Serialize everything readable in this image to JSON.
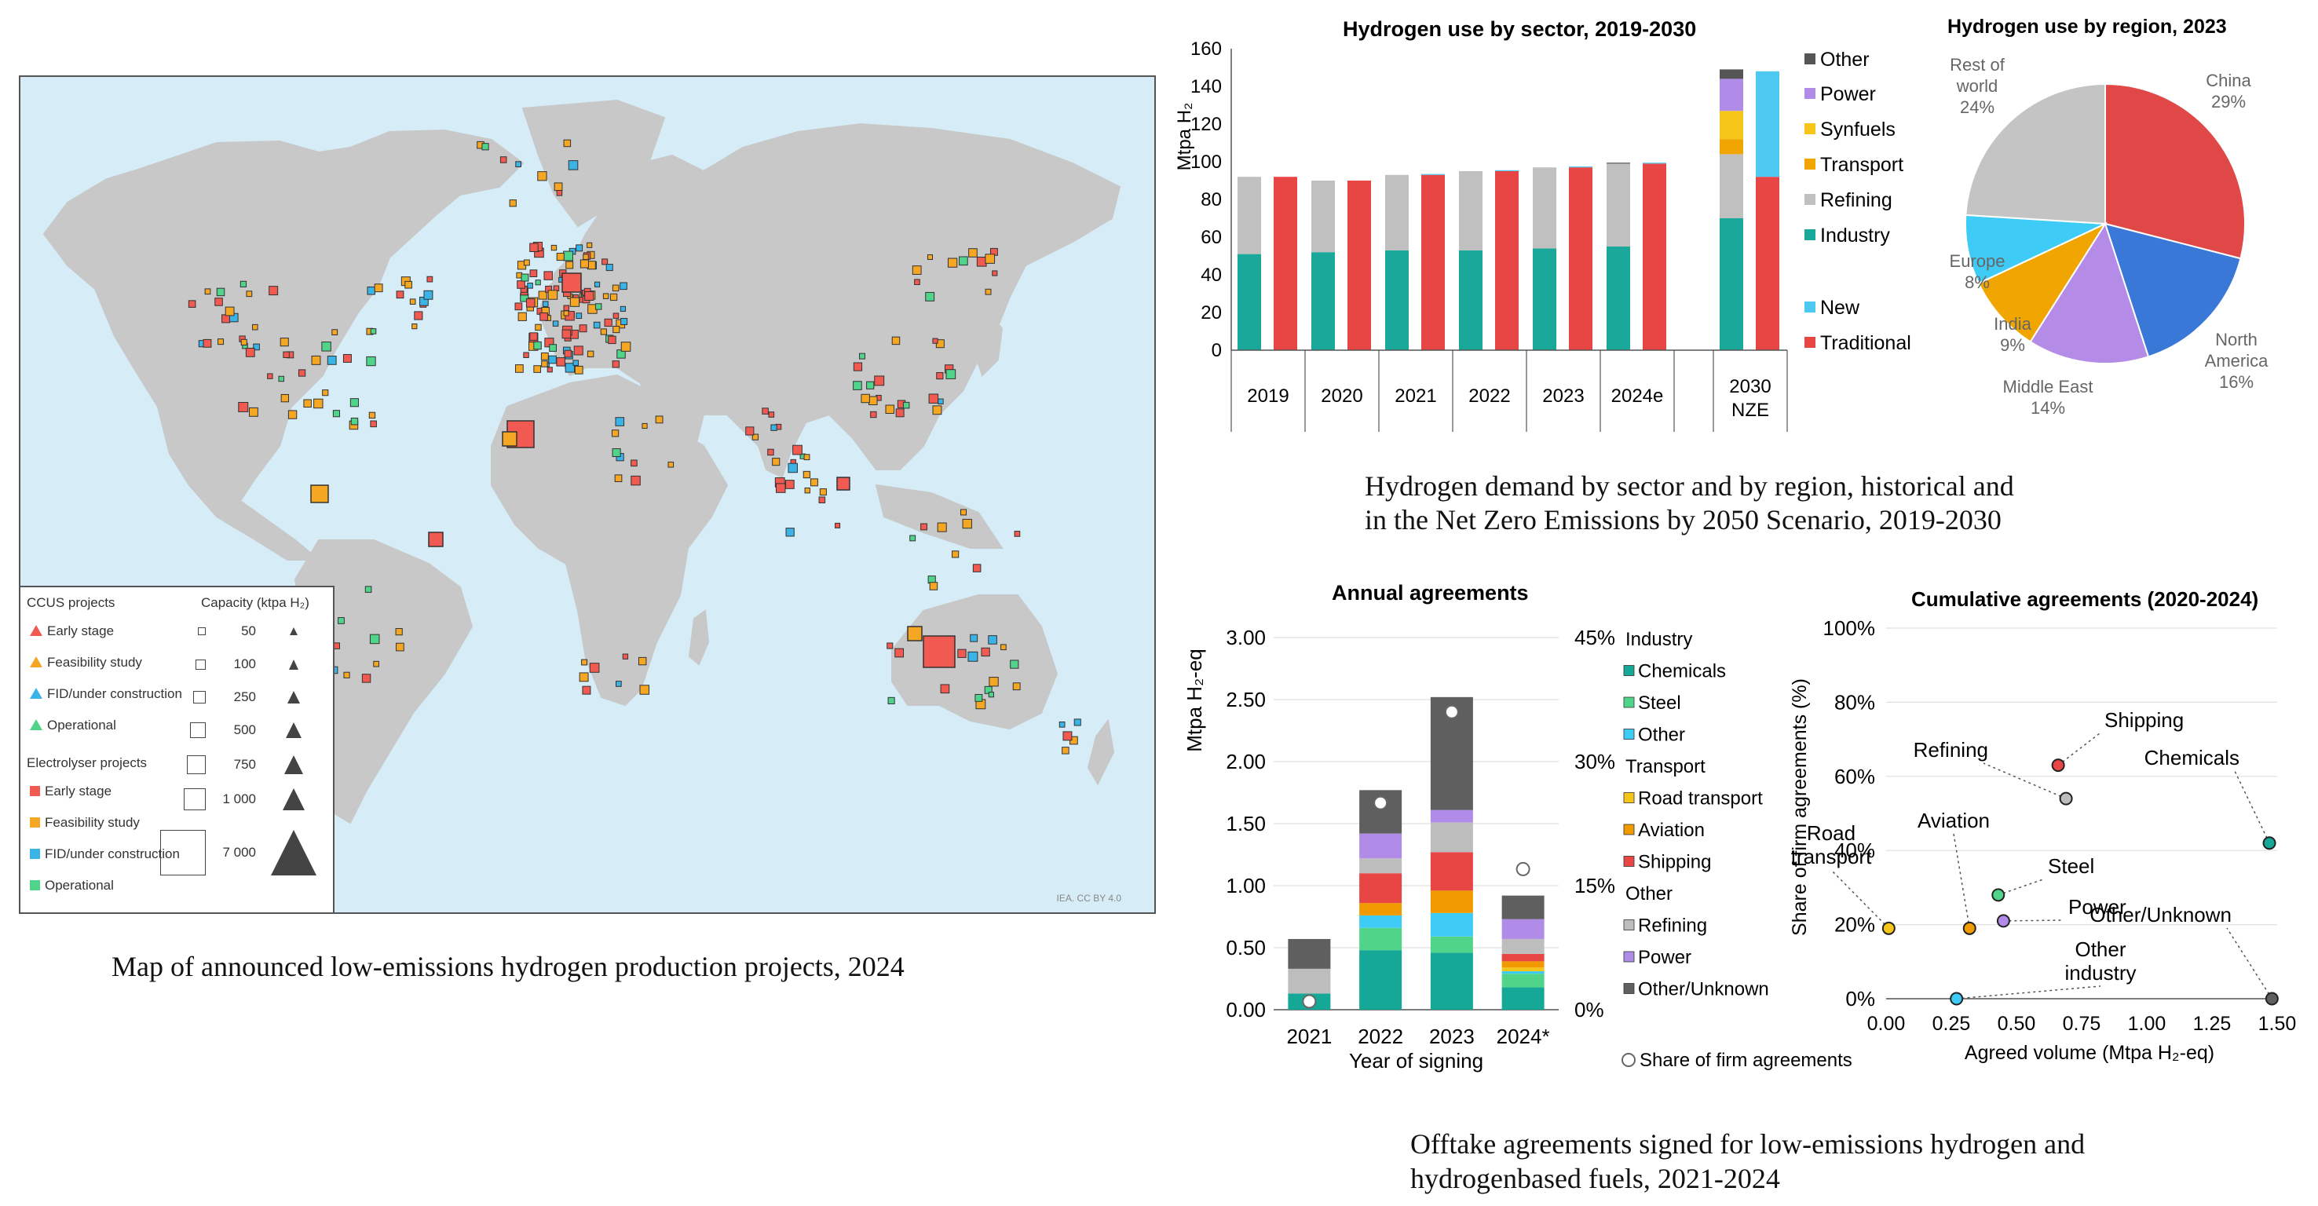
{
  "map": {
    "caption": "Map of announced low-emissions hydrogen production projects, 2024",
    "credit": "IEA. CC BY 4.0",
    "legend": {
      "ccus_header": "CCUS projects",
      "ccus_items": [
        "Early stage",
        "Feasibility study",
        "FID/under construction",
        "Operational"
      ],
      "electrolyser_header": "Electrolyser projects",
      "electrolyser_items": [
        "Early stage",
        "Feasibility study",
        "FID/under construction",
        "Operational"
      ],
      "capacity_header": "Capacity (ktpa H₂)",
      "capacity_values": [
        "50",
        "100",
        "250",
        "500",
        "750",
        "1 000",
        "7 000"
      ]
    },
    "colors": {
      "early_stage": "#f05a50",
      "feasibility": "#f5a623",
      "fid": "#3ab4e6",
      "operational": "#4fd48a",
      "land": "#c8c8c8",
      "ocean": "#d6ecf6"
    }
  },
  "demand": {
    "caption_line1": "Hydrogen demand by sector and by region, historical and",
    "caption_line2": "in the Net Zero Emissions by 2050 Scenario, 2019-2030"
  },
  "offtake": {
    "caption_line1": "Offtake agreements signed for low-emissions hydrogen and",
    "caption_line2": "hydrogenbased fuels, 2021-2024"
  },
  "chart_data": [
    {
      "type": "bar",
      "title": "Hydrogen use by sector, 2019-2030",
      "ylabel": "Mtpa H₂",
      "ylim": [
        0,
        160
      ],
      "yticks": [
        "0",
        "20",
        "40",
        "60",
        "80",
        "100",
        "120",
        "140",
        "160"
      ],
      "categories": [
        "2019",
        "2020",
        "2021",
        "2022",
        "2023",
        "2024e",
        "2030 NZE"
      ],
      "category_labels": [
        [
          "2019"
        ],
        [
          "2020"
        ],
        [
          "2021"
        ],
        [
          "2022"
        ],
        [
          "2023"
        ],
        [
          "2024e"
        ],
        [
          "2030",
          "NZE"
        ]
      ],
      "legend": [
        "Other",
        "Power",
        "Synfuels",
        "Transport",
        "Refining",
        "Industry",
        "New",
        "Traditional"
      ],
      "colors": {
        "Other": "#555555",
        "Power": "#b18be8",
        "Synfuels": "#f5c518",
        "Transport": "#f0a500",
        "Refining": "#c0c0c0",
        "Industry": "#1aa89a",
        "New": "#4dc8f0",
        "Traditional": "#e84545"
      },
      "sector_bars": [
        {
          "Industry": 51,
          "Refining": 41,
          "Transport": 0,
          "Synfuels": 0,
          "Power": 0,
          "Other": 0
        },
        {
          "Industry": 52,
          "Refining": 38,
          "Transport": 0,
          "Synfuels": 0,
          "Power": 0,
          "Other": 0
        },
        {
          "Industry": 53,
          "Refining": 40,
          "Transport": 0,
          "Synfuels": 0,
          "Power": 0,
          "Other": 0
        },
        {
          "Industry": 53,
          "Refining": 42,
          "Transport": 0,
          "Synfuels": 0,
          "Power": 0,
          "Other": 0
        },
        {
          "Industry": 54,
          "Refining": 43,
          "Transport": 0,
          "Synfuels": 0,
          "Power": 0,
          "Other": 0
        },
        {
          "Industry": 55,
          "Refining": 44,
          "Transport": 0,
          "Synfuels": 0,
          "Power": 0,
          "Other": 0.5
        },
        {
          "Industry": 70,
          "Refining": 34,
          "Transport": 8,
          "Synfuels": 15,
          "Power": 17,
          "Other": 5
        }
      ],
      "type_bars": [
        {
          "Traditional": 92,
          "New": 0
        },
        {
          "Traditional": 90,
          "New": 0
        },
        {
          "Traditional": 93,
          "New": 0.5
        },
        {
          "Traditional": 95,
          "New": 0.5
        },
        {
          "Traditional": 97,
          "New": 0.5
        },
        {
          "Traditional": 99,
          "New": 0.5
        },
        {
          "Traditional": 92,
          "New": 56
        }
      ]
    },
    {
      "type": "pie",
      "title": "Hydrogen use by region, 2023",
      "slices": [
        {
          "label": "China",
          "value": 29,
          "color": "#e04848"
        },
        {
          "label": "North America",
          "value": 16,
          "color": "#3a78d8"
        },
        {
          "label": "Middle East",
          "value": 14,
          "color": "#b58be8"
        },
        {
          "label": "India",
          "value": 9,
          "color": "#f0a500"
        },
        {
          "label": "Europe",
          "value": 8,
          "color": "#3ecbf5"
        },
        {
          "label": "Rest of world",
          "value": 24,
          "color": "#c4c4c4"
        }
      ],
      "label_lines": [
        [
          "China",
          "29%"
        ],
        [
          "North",
          "America",
          "16%"
        ],
        [
          "Middle East",
          "14%"
        ],
        [
          "India",
          "9%"
        ],
        [
          "Europe",
          "8%"
        ],
        [
          "Rest of",
          "world",
          "24%"
        ]
      ]
    },
    {
      "type": "bar",
      "title": "Annual agreements",
      "ylabel": "Mtpa H₂-eq",
      "xlabel": "Year of signing",
      "ylim": [
        0,
        3.0
      ],
      "yticks": [
        "0.00",
        "0.50",
        "1.00",
        "1.50",
        "2.00",
        "2.50",
        "3.00"
      ],
      "y2ticks": [
        "0%",
        "15%",
        "30%",
        "45%"
      ],
      "y2lim": [
        0,
        45
      ],
      "categories": [
        "2021",
        "2022",
        "2023",
        "2024*"
      ],
      "stack_order": [
        "Chemicals",
        "Steel",
        "Other",
        "Road transport",
        "Aviation",
        "Shipping",
        "Refining",
        "Power",
        "Other/Unknown"
      ],
      "colors": {
        "Chemicals": "#16a896",
        "Steel": "#4fd48a",
        "Other": "#3ecbf5",
        "Road transport": "#f5c518",
        "Aviation": "#f09a00",
        "Shipping": "#e84545",
        "Refining": "#bdbdbd",
        "Power": "#b18be8",
        "Other/Unknown": "#5f5f5f"
      },
      "values": [
        {
          "Chemicals": 0.13,
          "Steel": 0,
          "Other": 0,
          "Road transport": 0,
          "Aviation": 0,
          "Shipping": 0,
          "Refining": 0.2,
          "Power": 0,
          "Other/Unknown": 0.24
        },
        {
          "Chemicals": 0.48,
          "Steel": 0.18,
          "Other": 0.1,
          "Road transport": 0,
          "Aviation": 0.1,
          "Shipping": 0.24,
          "Refining": 0.12,
          "Power": 0.2,
          "Other/Unknown": 0.35
        },
        {
          "Chemicals": 0.46,
          "Steel": 0.13,
          "Other": 0.19,
          "Road transport": 0,
          "Aviation": 0.18,
          "Shipping": 0.31,
          "Refining": 0.24,
          "Power": 0.1,
          "Other/Unknown": 0.91
        },
        {
          "Chemicals": 0.18,
          "Steel": 0.11,
          "Other": 0.02,
          "Road transport": 0.03,
          "Aviation": 0.05,
          "Shipping": 0.06,
          "Refining": 0.12,
          "Power": 0.16,
          "Other/Unknown": 0.19
        }
      ],
      "share_of_firm_agreements": [
        1,
        25,
        36,
        17
      ],
      "legend": [
        {
          "text": "Industry",
          "key": null
        },
        {
          "text": "Chemicals",
          "key": "Chemicals"
        },
        {
          "text": "Steel",
          "key": "Steel"
        },
        {
          "text": "Other",
          "key": "Other"
        },
        {
          "text": "Transport",
          "key": null
        },
        {
          "text": "Road transport",
          "key": "Road transport"
        },
        {
          "text": "Aviation",
          "key": "Aviation"
        },
        {
          "text": "Shipping",
          "key": "Shipping"
        },
        {
          "text": "Other",
          "key": null
        },
        {
          "text": "Refining",
          "key": "Refining"
        },
        {
          "text": "Power",
          "key": "Power"
        },
        {
          "text": "Other/Unknown",
          "key": "Other/Unknown"
        }
      ],
      "share_legend": "Share of firm agreements"
    },
    {
      "type": "scatter",
      "title": "Cumulative agreements (2020-2024)",
      "xlabel": "Agreed volume (Mtpa H₂-eq)",
      "ylabel": "Share of firm agreements (%)",
      "xlim": [
        0,
        1.5
      ],
      "ylim": [
        0,
        100
      ],
      "xticks": [
        "0.00",
        "0.25",
        "0.50",
        "0.75",
        "1.00",
        "1.25",
        "1.50"
      ],
      "yticks": [
        "0%",
        "20%",
        "40%",
        "60%",
        "80%",
        "100%"
      ],
      "points": [
        {
          "label": "Shipping",
          "x": 0.66,
          "y": 63,
          "color": "#e84545"
        },
        {
          "label": "Refining",
          "x": 0.69,
          "y": 54,
          "color": "#bdbdbd"
        },
        {
          "label": "Chemicals",
          "x": 1.47,
          "y": 42,
          "color": "#16a896"
        },
        {
          "label": "Steel",
          "x": 0.43,
          "y": 28,
          "color": "#4fd48a"
        },
        {
          "label": "Power",
          "x": 0.45,
          "y": 21,
          "color": "#b18be8"
        },
        {
          "label": "Road transport",
          "x": 0.01,
          "y": 19,
          "color": "#f5c518"
        },
        {
          "label": "Aviation",
          "x": 0.32,
          "y": 19,
          "color": "#f09a00"
        },
        {
          "label": "Other/Unknown",
          "x": 1.48,
          "y": 0,
          "color": "#5f5f5f"
        },
        {
          "label": "Other industry",
          "x": 0.27,
          "y": 0,
          "color": "#3ecbf5"
        }
      ],
      "point_label_lines": {
        "Shipping": [
          "Shipping"
        ],
        "Refining": [
          "Refining"
        ],
        "Chemicals": [
          "Chemicals"
        ],
        "Steel": [
          "Steel"
        ],
        "Power": [
          "Power"
        ],
        "Road transport": [
          "Road",
          "transport"
        ],
        "Aviation": [
          "Aviation"
        ],
        "Other/Unknown": [
          "Other/Unknown"
        ],
        "Other industry": [
          "Other",
          "industry"
        ]
      }
    }
  ]
}
